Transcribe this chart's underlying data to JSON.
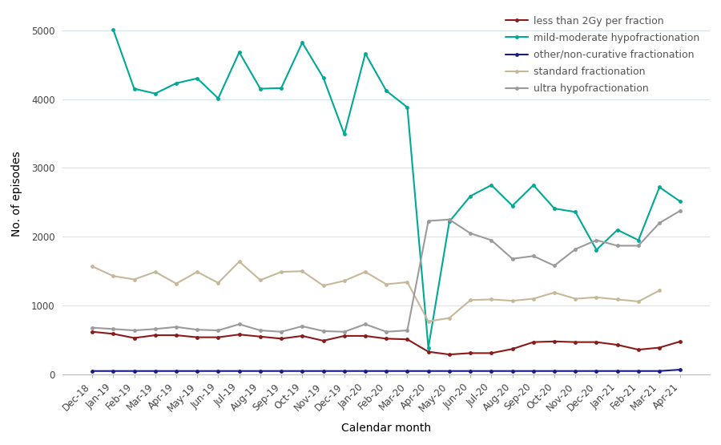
{
  "x_labels": [
    "Dec-18",
    "Jan-19",
    "Feb-19",
    "Mar-19",
    "Apr-19",
    "May-19",
    "Jun-19",
    "Jul-19",
    "Aug-19",
    "Sep-19",
    "Oct-19",
    "Nov-19",
    "Dec-19",
    "Jan-20",
    "Feb-20",
    "Mar-20",
    "Apr-20",
    "May-20",
    "Jun-20",
    "Jul-20",
    "Aug-20",
    "Sep-20",
    "Oct-20",
    "Nov-20",
    "Dec-20",
    "Jan-21",
    "Feb-21",
    "Mar-21",
    "Apr-21"
  ],
  "series": {
    "less_than_2Gy": {
      "label": "less than 2Gy per fraction",
      "color": "#8B1A1A",
      "values": [
        620,
        590,
        530,
        570,
        570,
        540,
        540,
        580,
        550,
        520,
        560,
        490,
        560,
        560,
        520,
        510,
        330,
        290,
        310,
        310,
        370,
        470,
        480,
        470,
        470,
        430,
        360,
        390,
        480
      ]
    },
    "mild_moderate": {
      "label": "mild-moderate hypofractionation",
      "color": "#00A896",
      "values": [
        null,
        5010,
        4150,
        4080,
        4230,
        4300,
        4010,
        4680,
        4150,
        4160,
        4820,
        4310,
        3490,
        4660,
        4120,
        3880,
        390,
        2220,
        2590,
        2750,
        2450,
        2750,
        2410,
        2360,
        1810,
        2100,
        1950,
        2720,
        2510
      ]
    },
    "other_non_curative": {
      "label": "other/non-curative fractionation",
      "color": "#1a1a8c",
      "values": [
        50,
        50,
        50,
        50,
        50,
        50,
        50,
        50,
        50,
        50,
        50,
        50,
        50,
        50,
        50,
        50,
        50,
        50,
        50,
        50,
        50,
        50,
        50,
        50,
        50,
        50,
        50,
        50,
        70
      ]
    },
    "standard": {
      "label": "standard fractionation",
      "color": "#C8B89A",
      "values": [
        1570,
        1430,
        1380,
        1490,
        1320,
        1490,
        1330,
        1640,
        1370,
        1490,
        1500,
        1290,
        1360,
        1490,
        1310,
        1340,
        770,
        820,
        1080,
        1090,
        1070,
        1100,
        1190,
        1100,
        1120,
        1090,
        1060,
        1220,
        null
      ]
    },
    "ultra_hypo": {
      "label": "ultra hypofractionation",
      "color": "#9B9B9B",
      "values": [
        680,
        660,
        640,
        660,
        690,
        650,
        640,
        730,
        640,
        620,
        700,
        630,
        620,
        730,
        620,
        640,
        2230,
        2250,
        2050,
        1950,
        1680,
        1720,
        1580,
        1820,
        1950,
        1870,
        1870,
        2200,
        2380
      ]
    }
  },
  "ylabel": "No. of episodes",
  "xlabel": "Calendar month",
  "ylim": [
    0,
    5250
  ],
  "yticks": [
    0,
    1000,
    2000,
    3000,
    4000,
    5000
  ],
  "background_color": "#ffffff",
  "grid_color": "#d5e3ee",
  "legend_text_color": "#555555",
  "legend_fontsize": 9,
  "axis_fontsize": 10,
  "tick_fontsize": 8.5
}
